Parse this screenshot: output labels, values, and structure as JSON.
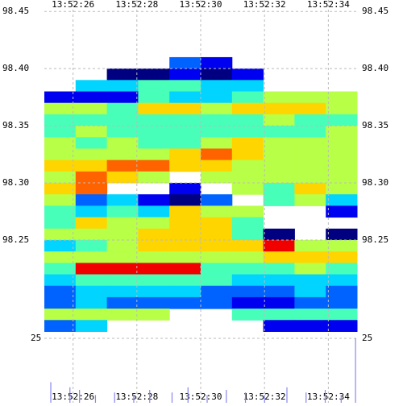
{
  "chart_data": {
    "type": "heatmap",
    "xlim": [
      25.1,
      34.9
    ],
    "xticks": [
      {
        "value": 26,
        "label": "13:52:26"
      },
      {
        "value": 28,
        "label": "13:52:28"
      },
      {
        "value": 30,
        "label": "13:52:30"
      },
      {
        "value": 32,
        "label": "13:52:32"
      },
      {
        "value": 34,
        "label": "13:52:34"
      }
    ],
    "ylim": [
      98.164,
      98.46
    ],
    "yticks": [
      {
        "value": 98.45,
        "label": "98.45"
      },
      {
        "value": 98.4,
        "label": "98.40"
      },
      {
        "value": 98.35,
        "label": "98.35"
      },
      {
        "value": 98.3,
        "label": "98.30"
      },
      {
        "value": 98.25,
        "label": "98.25"
      }
    ],
    "x": [
      25.59,
      26.57,
      27.55,
      28.53,
      29.51,
      30.49,
      31.47,
      32.45,
      33.43,
      34.41
    ],
    "y": [
      98.405,
      98.395,
      98.385,
      98.375,
      98.365,
      98.355,
      98.345,
      98.335,
      98.325,
      98.315,
      98.305,
      98.295,
      98.285,
      98.275,
      98.265,
      98.255,
      98.245,
      98.235,
      98.225,
      98.215,
      98.205,
      98.195,
      98.185,
      98.175
    ],
    "grid": true,
    "z": [
      [
        null,
        null,
        null,
        null,
        2,
        1,
        null,
        null,
        null,
        null
      ],
      [
        null,
        null,
        0,
        0,
        1,
        0,
        1,
        null,
        null,
        null
      ],
      [
        null,
        3,
        3,
        4,
        4,
        3,
        3,
        null,
        null,
        null
      ],
      [
        1,
        1,
        1,
        4,
        3,
        3,
        4,
        5,
        5,
        5
      ],
      [
        5,
        5,
        4,
        6,
        6,
        5,
        6,
        6,
        6,
        5
      ],
      [
        4,
        4,
        4,
        4,
        4,
        4,
        4,
        5,
        4,
        4
      ],
      [
        4,
        5,
        4,
        4,
        4,
        4,
        4,
        4,
        4,
        5
      ],
      [
        5,
        4,
        5,
        4,
        4,
        5,
        6,
        5,
        5,
        5
      ],
      [
        5,
        5,
        5,
        5,
        6,
        7,
        6,
        5,
        5,
        5
      ],
      [
        6,
        6,
        7,
        7,
        6,
        6,
        5,
        5,
        5,
        5
      ],
      [
        5,
        7,
        6,
        5,
        null,
        5,
        5,
        5,
        5,
        5
      ],
      [
        6,
        7,
        null,
        null,
        1,
        null,
        5,
        4,
        6,
        5
      ],
      [
        5,
        2,
        3,
        1,
        0,
        2,
        null,
        4,
        5,
        3
      ],
      [
        4,
        3,
        4,
        3,
        6,
        5,
        5,
        null,
        null,
        1
      ],
      [
        4,
        6,
        5,
        5,
        6,
        6,
        4,
        null,
        null,
        null
      ],
      [
        5,
        5,
        5,
        6,
        6,
        6,
        4,
        0,
        null,
        0
      ],
      [
        3,
        4,
        5,
        6,
        6,
        6,
        6,
        8,
        5,
        5
      ],
      [
        5,
        5,
        5,
        5,
        5,
        5,
        5,
        6,
        6,
        6
      ],
      [
        4,
        8,
        8,
        8,
        8,
        4,
        4,
        4,
        5,
        4
      ],
      [
        3,
        4,
        4,
        4,
        4,
        4,
        3,
        3,
        3,
        3
      ],
      [
        2,
        3,
        3,
        3,
        3,
        2,
        2,
        2,
        3,
        2
      ],
      [
        2,
        3,
        2,
        2,
        2,
        2,
        1,
        1,
        2,
        2
      ],
      [
        5,
        5,
        5,
        5,
        null,
        null,
        4,
        4,
        4,
        4
      ],
      [
        2,
        3,
        null,
        null,
        null,
        null,
        null,
        1,
        1,
        1
      ]
    ],
    "zlim": [
      0,
      9
    ],
    "volume": {
      "type": "bar",
      "color": "#8888ee",
      "ylim": [
        0,
        25
      ],
      "yticks": [
        25
      ],
      "x": [
        25.3,
        25.9,
        26.2,
        26.7,
        27.3,
        27.9,
        28.4,
        29.1,
        29.6,
        30.2,
        30.8,
        31.4,
        32.0,
        32.7,
        33.3,
        33.9,
        34.4,
        34.85
      ],
      "values": [
        8,
        6,
        5,
        3,
        4,
        3,
        5,
        4,
        6,
        3,
        5,
        4,
        3,
        6,
        4,
        5,
        3,
        25
      ]
    }
  }
}
